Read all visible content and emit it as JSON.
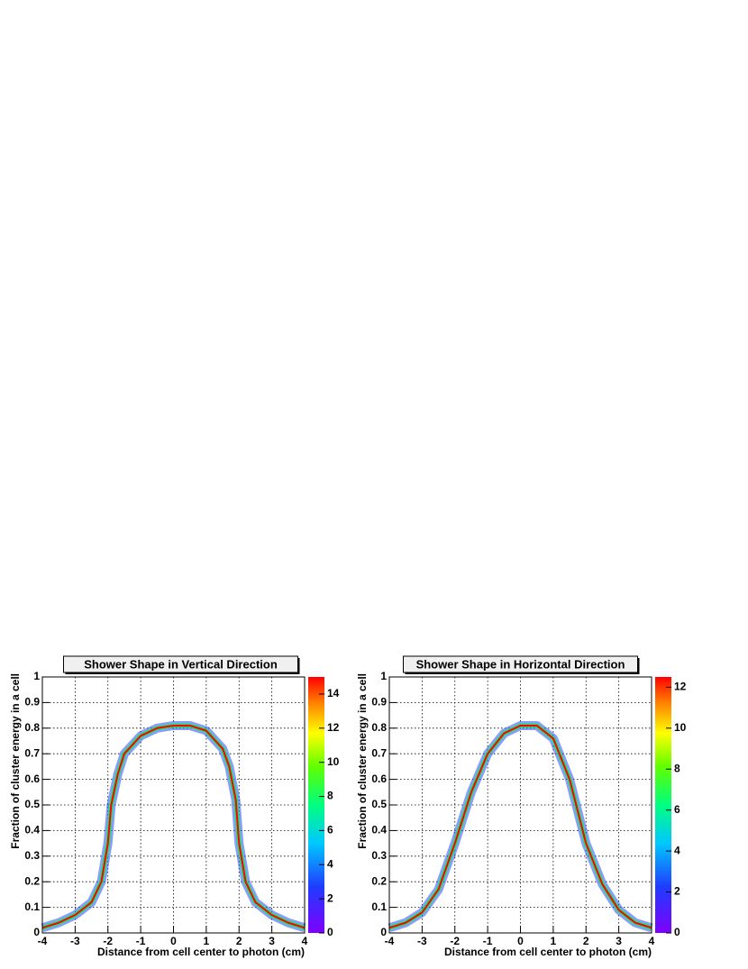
{
  "chart_data": [
    {
      "type": "line",
      "title": "Shower Shape in Vertical Direction",
      "x_label": "Distance from cell center to photon (cm)",
      "y_label": "Fraction of cluster energy in a cell",
      "xlim": [
        -4,
        4
      ],
      "xticks": [
        -4,
        -3,
        -2,
        -1,
        0,
        1,
        2,
        3,
        4
      ],
      "ylim": [
        0,
        1
      ],
      "yticks": [
        0,
        0.1,
        0.2,
        0.3,
        0.4,
        0.5,
        0.6,
        0.7,
        0.8,
        0.9,
        1
      ],
      "zlim": [
        0,
        15
      ],
      "zticks": [
        0,
        2,
        4,
        6,
        8,
        10,
        12,
        14
      ],
      "grid": true,
      "series": [
        {
          "color": "#ff0000",
          "x": [
            -4,
            -3.5,
            -3,
            -2.5,
            -2.2,
            -2,
            -1.9,
            -1.7,
            -1.5,
            -1,
            -0.5,
            0,
            0.5,
            1,
            1.5,
            1.7,
            1.9,
            2,
            2.2,
            2.5,
            3,
            3.5,
            4
          ],
          "values": [
            0.02,
            0.04,
            0.07,
            0.12,
            0.2,
            0.35,
            0.5,
            0.62,
            0.7,
            0.77,
            0.8,
            0.81,
            0.81,
            0.79,
            0.72,
            0.65,
            0.52,
            0.35,
            0.2,
            0.12,
            0.07,
            0.04,
            0.02
          ]
        }
      ]
    },
    {
      "type": "line",
      "title": "Shower Shape in Horizontal Direction",
      "x_label": "Distance from cell center to photon (cm)",
      "y_label": "Fraction of cluster energy in a cell",
      "xlim": [
        -4,
        4
      ],
      "xticks": [
        -4,
        -3,
        -2,
        -1,
        0,
        1,
        2,
        3,
        4
      ],
      "ylim": [
        0,
        1
      ],
      "yticks": [
        0,
        0.1,
        0.2,
        0.3,
        0.4,
        0.5,
        0.6,
        0.7,
        0.8,
        0.9,
        1
      ],
      "zlim": [
        0,
        12.5
      ],
      "zticks": [
        0,
        2,
        4,
        6,
        8,
        10,
        12
      ],
      "grid": true,
      "series": [
        {
          "color": "#ff0000",
          "x": [
            -4,
            -3.5,
            -3,
            -2.5,
            -2,
            -1.5,
            -1,
            -0.5,
            0,
            0.5,
            1,
            1.5,
            2,
            2.5,
            3,
            3.5,
            4
          ],
          "values": [
            0.02,
            0.04,
            0.08,
            0.17,
            0.35,
            0.55,
            0.7,
            0.78,
            0.81,
            0.81,
            0.76,
            0.6,
            0.35,
            0.19,
            0.09,
            0.04,
            0.02
          ]
        }
      ]
    }
  ]
}
